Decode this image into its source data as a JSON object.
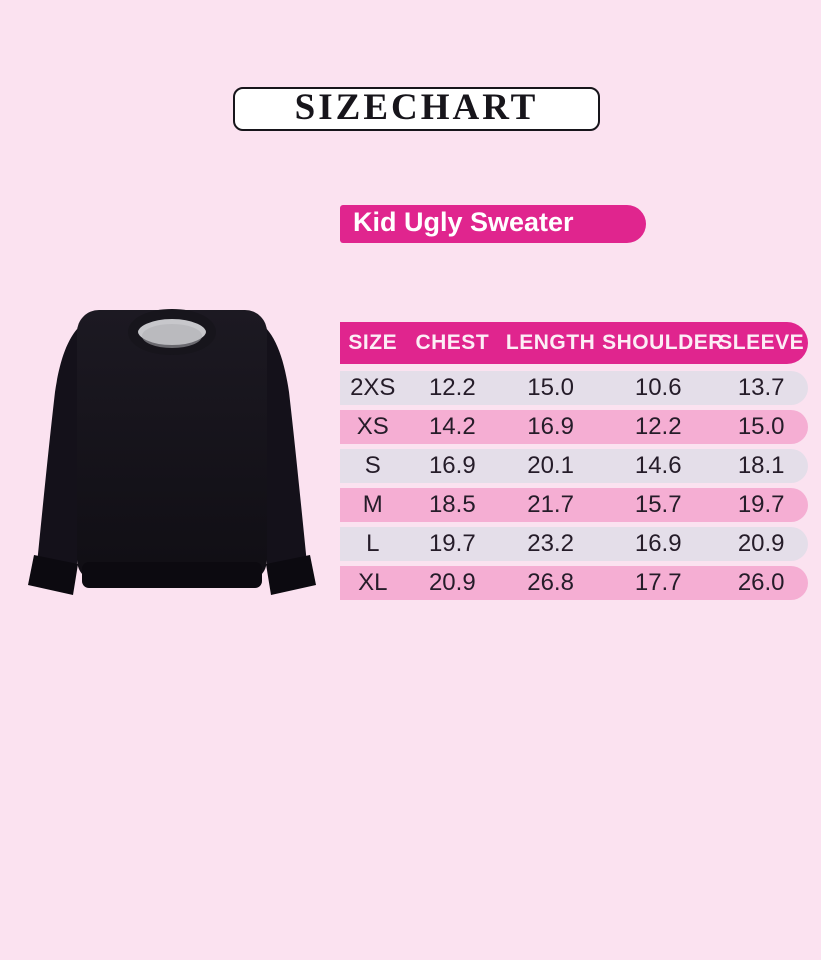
{
  "page": {
    "background_color": "#FBE2F0"
  },
  "colors": {
    "accent_magenta": "#E0258E",
    "row_lavender": "#E4DEE9",
    "row_pink": "#F5AED3",
    "row_text": "#251C29",
    "title_box_background": "#FFFFFF",
    "title_box_border": "#17151B",
    "sweater_body": "#17141B",
    "sweater_collar": "#C7C7CB"
  },
  "title": {
    "label": "SIZECHART"
  },
  "product_banner": {
    "label": "Kid Ugly Sweater"
  },
  "sweater_image": {
    "description": "black crewneck kid ugly sweater product photo"
  },
  "chart_data": {
    "type": "table",
    "title": "SIZECHART",
    "subtitle": "Kid Ugly Sweater",
    "columns": [
      "SIZE",
      "CHEST",
      "LENGTH",
      "SHOULDER",
      "SLEEVE"
    ],
    "rows": [
      [
        "2XS",
        "12.2",
        "15.0",
        "10.6",
        "13.7"
      ],
      [
        "XS",
        "14.2",
        "16.9",
        "12.2",
        "15.0"
      ],
      [
        "S",
        "16.9",
        "20.1",
        "14.6",
        "18.1"
      ],
      [
        "M",
        "18.5",
        "21.7",
        "15.7",
        "19.7"
      ],
      [
        "L",
        "19.7",
        "23.2",
        "16.9",
        "20.9"
      ],
      [
        "XL",
        "20.9",
        "26.8",
        "17.7",
        "26.0"
      ]
    ]
  }
}
